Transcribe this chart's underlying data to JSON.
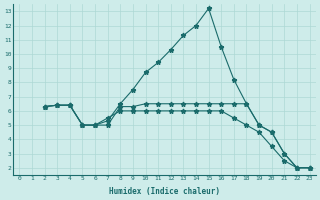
{
  "xlabel": "Humidex (Indice chaleur)",
  "background_color": "#ceecea",
  "grid_color": "#aed8d5",
  "line_color": "#1a6b6b",
  "xlim": [
    -0.5,
    23.5
  ],
  "ylim": [
    1.5,
    13.5
  ],
  "xticks": [
    0,
    1,
    2,
    3,
    4,
    5,
    6,
    7,
    8,
    9,
    10,
    11,
    12,
    13,
    14,
    15,
    16,
    17,
    18,
    19,
    20,
    21,
    22,
    23
  ],
  "yticks": [
    2,
    3,
    4,
    5,
    6,
    7,
    8,
    9,
    10,
    11,
    12,
    13
  ],
  "series": [
    {
      "x": [
        2,
        3,
        4,
        5,
        6,
        7,
        8,
        9,
        10,
        11,
        12,
        13,
        14,
        15,
        16,
        17,
        18,
        19,
        20,
        21,
        22,
        23
      ],
      "y": [
        6.3,
        6.4,
        6.4,
        5.0,
        5.0,
        5.3,
        6.5,
        7.5,
        8.7,
        9.4,
        10.3,
        11.3,
        12.0,
        13.2,
        10.5,
        8.2,
        6.5,
        5.0,
        4.5,
        3.0,
        2.0,
        2.0
      ]
    },
    {
      "x": [
        2,
        3,
        4,
        5,
        6,
        7,
        8,
        9,
        10,
        11,
        12,
        13,
        14,
        15,
        16,
        17,
        18,
        19,
        20,
        21,
        22,
        23
      ],
      "y": [
        6.3,
        6.4,
        6.4,
        5.0,
        5.0,
        5.0,
        6.3,
        6.3,
        6.5,
        6.5,
        6.5,
        6.5,
        6.5,
        6.5,
        6.5,
        6.5,
        6.5,
        5.0,
        4.5,
        3.0,
        2.0,
        2.0
      ]
    },
    {
      "x": [
        2,
        3,
        4,
        5,
        6,
        7,
        8,
        9,
        10,
        11,
        12,
        13,
        14,
        15,
        16,
        17,
        18,
        19,
        20,
        21,
        22,
        23
      ],
      "y": [
        6.3,
        6.4,
        6.4,
        5.0,
        5.0,
        5.5,
        6.0,
        6.0,
        6.0,
        6.0,
        6.0,
        6.0,
        6.0,
        6.0,
        6.0,
        5.5,
        5.0,
        4.5,
        3.5,
        2.5,
        2.0,
        2.0
      ]
    }
  ]
}
